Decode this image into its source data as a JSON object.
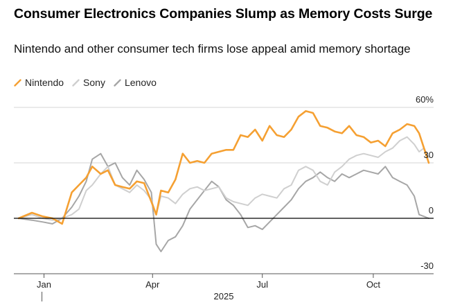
{
  "header": {
    "title": "Consumer Electronics Companies Slump as Memory Costs Surge",
    "subtitle": "Nintendo and other consumer tech firms lose appeal amid memory shortage"
  },
  "legend": [
    {
      "label": "Nintendo",
      "color": "#f5a032"
    },
    {
      "label": "Sony",
      "color": "#cfcfcf"
    },
    {
      "label": "Lenovo",
      "color": "#a6a6a6"
    }
  ],
  "chart_data": {
    "type": "line",
    "title": "Consumer Electronics Companies Slump as Memory Costs Surge",
    "subtitle": "Nintendo and other consumer tech firms lose appeal amid memory shortage",
    "xlabel": "",
    "ylabel": "",
    "x_unit": "day-of-year 2025",
    "xlim": [
      -10,
      338
    ],
    "ylim": [
      -30,
      60
    ],
    "y_ticks": [
      {
        "value": 60,
        "label": "60%"
      },
      {
        "value": 30,
        "label": "30"
      },
      {
        "value": 0,
        "label": "0"
      },
      {
        "value": -30,
        "label": "-30"
      }
    ],
    "x_ticks": [
      {
        "value": 15,
        "label": "Jan"
      },
      {
        "value": 105,
        "label": "Apr"
      },
      {
        "value": 196,
        "label": "Jul"
      },
      {
        "value": 288,
        "label": "Oct"
      }
    ],
    "year_label": "2025",
    "grid": true,
    "series": [
      {
        "name": "Nintendo",
        "color": "#f5a032",
        "stroke_width": 2.6,
        "x": [
          -6,
          5,
          14,
          22,
          30,
          38,
          44,
          50,
          55,
          62,
          68,
          74,
          80,
          86,
          92,
          98,
          104,
          108,
          112,
          118,
          124,
          130,
          136,
          142,
          148,
          154,
          160,
          166,
          172,
          178,
          184,
          190,
          196,
          202,
          208,
          214,
          220,
          226,
          232,
          238,
          244,
          250,
          256,
          262,
          268,
          274,
          280,
          286,
          292,
          298,
          304,
          310,
          316,
          322,
          326,
          330,
          334
        ],
        "values": [
          0,
          3,
          1,
          0,
          -3,
          14,
          18,
          22,
          28,
          24,
          26,
          18,
          17,
          16,
          20,
          19,
          9,
          2,
          15,
          14,
          21,
          35,
          30,
          31,
          30,
          35,
          36,
          37,
          37,
          45,
          44,
          48,
          42,
          50,
          45,
          44,
          48,
          55,
          58,
          57,
          50,
          49,
          47,
          46,
          50,
          45,
          44,
          41,
          42,
          39,
          46,
          48,
          51,
          50,
          46,
          38,
          30
        ]
      },
      {
        "name": "Sony",
        "color": "#cfcfcf",
        "stroke_width": 2.0,
        "x": [
          -6,
          5,
          14,
          22,
          30,
          38,
          44,
          50,
          55,
          62,
          68,
          74,
          80,
          86,
          92,
          98,
          104,
          108,
          112,
          118,
          124,
          130,
          136,
          142,
          148,
          154,
          160,
          166,
          172,
          178,
          184,
          190,
          196,
          202,
          208,
          214,
          220,
          226,
          232,
          238,
          244,
          250,
          256,
          262,
          268,
          274,
          280,
          286,
          292,
          298,
          304,
          310,
          316,
          322,
          326,
          330,
          334
        ],
        "values": [
          0,
          2,
          0,
          -1,
          0,
          2,
          5,
          15,
          18,
          24,
          28,
          18,
          16,
          14,
          18,
          15,
          10,
          2,
          12,
          11,
          8,
          13,
          16,
          17,
          15,
          16,
          17,
          11,
          9,
          8,
          7,
          11,
          13,
          12,
          11,
          16,
          18,
          26,
          28,
          26,
          20,
          18,
          25,
          28,
          32,
          34,
          35,
          34,
          33,
          36,
          38,
          42,
          44,
          40,
          36,
          38,
          33
        ]
      },
      {
        "name": "Lenovo",
        "color": "#a6a6a6",
        "stroke_width": 2.0,
        "x": [
          -6,
          5,
          14,
          22,
          30,
          38,
          44,
          50,
          55,
          62,
          68,
          74,
          80,
          86,
          92,
          98,
          104,
          108,
          112,
          118,
          124,
          130,
          136,
          142,
          148,
          154,
          160,
          166,
          172,
          178,
          184,
          190,
          196,
          202,
          208,
          214,
          220,
          226,
          232,
          238,
          244,
          250,
          256,
          262,
          268,
          274,
          280,
          286,
          292,
          298,
          304,
          310,
          316,
          322,
          326,
          330,
          334
        ],
        "values": [
          0,
          -1,
          -2,
          -3,
          0,
          6,
          12,
          20,
          32,
          35,
          28,
          30,
          22,
          18,
          26,
          21,
          14,
          -14,
          -18,
          -12,
          -10,
          -4,
          5,
          10,
          15,
          20,
          17,
          10,
          7,
          2,
          -5,
          -4,
          -6,
          -2,
          2,
          6,
          10,
          16,
          20,
          22,
          25,
          22,
          20,
          24,
          22,
          24,
          26,
          25,
          24,
          28,
          22,
          20,
          18,
          12,
          2,
          1,
          0
        ]
      }
    ]
  }
}
